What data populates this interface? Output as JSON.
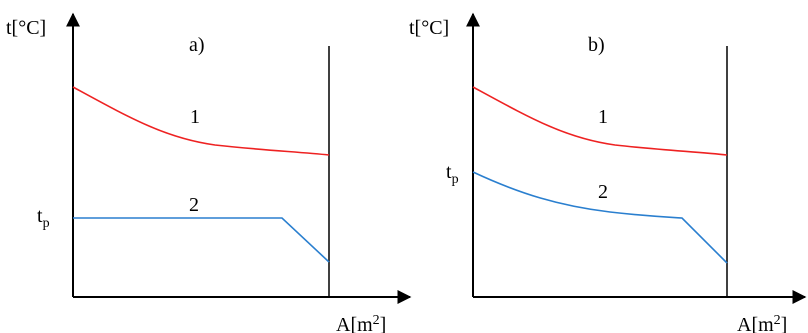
{
  "panels": [
    {
      "panel_label": "a)",
      "y_axis_label": "t[°C]",
      "x_axis_label": "A[m",
      "x_axis_label_sup": "2",
      "x_axis_label_end": "]",
      "curve_1_label": "1",
      "curve_2_label": "2",
      "tp_label_main": "t",
      "tp_label_sub": "p"
    },
    {
      "panel_label": "b)",
      "y_axis_label": "t[°C]",
      "x_axis_label": "A[m",
      "x_axis_label_sup": "2",
      "x_axis_label_end": "]",
      "curve_1_label": "1",
      "curve_2_label": "2",
      "tp_label_main": "t",
      "tp_label_sub": "p"
    }
  ],
  "colors": {
    "curve_1": "#ee2222",
    "curve_2": "#2a7fcf",
    "axis": "#000000"
  }
}
